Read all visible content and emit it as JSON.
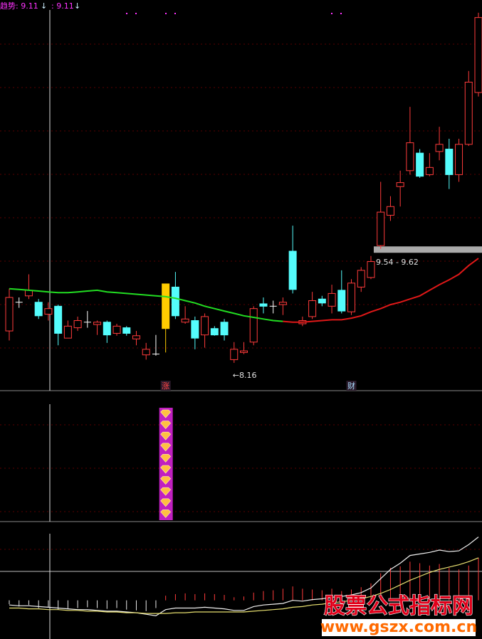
{
  "chart_data": {
    "type": "candlestick",
    "indicator_legend": [
      {
        "text": "趋势: 9.11",
        "color": "#ff33ff"
      },
      {
        "text": ": 9.11",
        "color": "#ff33ff"
      }
    ],
    "ylim": [
      7.82,
      12.71
    ],
    "up_color": "#ff3b3b",
    "down_color": "#54fcfc",
    "flat_color": "#ffffff",
    "open": [
      8.56,
      8.92,
      9.0,
      8.92,
      8.77,
      8.87,
      8.47,
      8.6,
      8.67,
      8.64,
      8.67,
      8.53,
      8.6,
      8.46,
      8.26,
      8.27,
      8.59,
      9.11,
      8.67,
      8.69,
      8.51,
      8.59,
      8.67,
      8.2,
      8.29,
      8.42,
      8.9,
      8.87,
      8.89,
      9.56,
      8.65,
      8.74,
      8.96,
      8.87,
      9.07,
      8.8,
      9.11,
      9.23,
      9.63,
      10.01,
      10.37,
      10.57,
      10.79,
      10.52,
      10.81,
      10.84,
      10.52,
      10.9,
      11.55
    ],
    "close": [
      8.98,
      8.92,
      9.07,
      8.75,
      8.84,
      8.53,
      8.62,
      8.69,
      8.67,
      8.67,
      8.51,
      8.62,
      8.53,
      8.5,
      8.33,
      8.27,
      9.15,
      8.75,
      8.71,
      8.47,
      8.74,
      8.51,
      8.51,
      8.33,
      8.31,
      8.84,
      8.87,
      8.87,
      8.92,
      9.08,
      8.69,
      8.94,
      8.91,
      9.03,
      8.81,
      9.16,
      9.32,
      9.43,
      10.05,
      10.12,
      10.42,
      10.92,
      10.5,
      10.61,
      10.9,
      10.52,
      10.9,
      11.68,
      12.49
    ],
    "high": [
      9.09,
      8.98,
      9.27,
      8.96,
      8.92,
      8.89,
      8.69,
      8.74,
      8.81,
      8.69,
      8.69,
      8.65,
      8.62,
      8.56,
      8.41,
      8.51,
      9.15,
      9.3,
      8.87,
      8.74,
      8.78,
      8.62,
      8.71,
      8.42,
      8.42,
      8.87,
      8.98,
      8.94,
      8.98,
      9.88,
      8.74,
      9.05,
      9.0,
      9.14,
      9.32,
      9.21,
      9.36,
      9.5,
      10.43,
      10.25,
      10.57,
      11.37,
      10.84,
      10.79,
      11.12,
      10.97,
      10.97,
      11.82,
      12.55
    ],
    "low": [
      8.44,
      8.85,
      8.96,
      8.71,
      8.69,
      8.38,
      8.47,
      8.56,
      8.6,
      8.51,
      8.41,
      8.5,
      8.5,
      8.38,
      8.2,
      8.25,
      8.29,
      8.71,
      8.65,
      8.33,
      8.35,
      8.5,
      8.44,
      8.16,
      8.27,
      8.38,
      8.78,
      8.78,
      8.76,
      9.03,
      8.62,
      8.71,
      8.87,
      8.78,
      8.78,
      8.76,
      9.05,
      9.21,
      9.59,
      9.94,
      10.12,
      10.52,
      10.48,
      10.5,
      10.7,
      10.34,
      10.43,
      10.88,
      11.5
    ],
    "series": [
      {
        "color": "#22dd22",
        "values": [
          9.09,
          9.08,
          9.07,
          9.06,
          9.05,
          9.04,
          9.04,
          9.05,
          9.06,
          9.07,
          9.05,
          9.04,
          9.03,
          9.02,
          9.01,
          9.0,
          8.99,
          8.97,
          8.94,
          8.91,
          8.87,
          8.84,
          8.81,
          8.78,
          8.75,
          8.73,
          8.71,
          8.69,
          8.68,
          null,
          null,
          null,
          null,
          null,
          null,
          null,
          null,
          null,
          null,
          null,
          null,
          null,
          null,
          null,
          null,
          null,
          null,
          null,
          null
        ]
      },
      {
        "color": "#e01818",
        "values": [
          null,
          null,
          null,
          null,
          null,
          null,
          null,
          null,
          null,
          null,
          null,
          null,
          null,
          null,
          null,
          null,
          null,
          null,
          null,
          null,
          null,
          null,
          null,
          null,
          null,
          null,
          null,
          null,
          8.68,
          8.67,
          8.67,
          8.68,
          8.69,
          8.7,
          8.7,
          8.72,
          8.75,
          8.8,
          8.84,
          8.89,
          8.92,
          8.96,
          9.0,
          9.07,
          9.14,
          9.2,
          9.27,
          9.38,
          9.47
        ]
      }
    ],
    "zone": {
      "label": "9.54 - 9.62",
      "low": 9.54,
      "high": 9.62,
      "start_index": 37
    },
    "low_label": {
      "text": "←8.16",
      "index": 23
    },
    "signals": [
      {
        "index": 16,
        "label": "涨",
        "color": "#ff4444",
        "candle_color": "#ffcc00"
      },
      {
        "index": 35,
        "label": "财",
        "color": "#aaddff"
      }
    ],
    "macd": {
      "ylim": [
        -0.5,
        1.0
      ],
      "hist": [
        -0.05,
        -0.08,
        -0.06,
        -0.1,
        -0.09,
        -0.12,
        -0.11,
        -0.1,
        -0.09,
        -0.1,
        -0.11,
        -0.1,
        -0.12,
        -0.13,
        -0.14,
        -0.1,
        0.06,
        0.08,
        0.09,
        0.08,
        0.09,
        0.08,
        0.07,
        0.04,
        0.05,
        0.1,
        0.12,
        0.13,
        0.15,
        0.18,
        0.15,
        0.14,
        0.13,
        0.15,
        0.12,
        0.14,
        0.17,
        0.22,
        0.35,
        0.42,
        0.44,
        0.5,
        0.48,
        0.45,
        0.47,
        0.42,
        0.4,
        0.45,
        0.55
      ],
      "series": [
        {
          "color": "#f0f0f0",
          "values": [
            -0.06,
            -0.07,
            -0.07,
            -0.08,
            -0.09,
            -0.1,
            -0.11,
            -0.12,
            -0.12,
            -0.13,
            -0.14,
            -0.14,
            -0.15,
            -0.16,
            -0.18,
            -0.2,
            -0.12,
            -0.1,
            -0.1,
            -0.1,
            -0.09,
            -0.1,
            -0.11,
            -0.13,
            -0.13,
            -0.08,
            -0.06,
            -0.05,
            -0.04,
            0.0,
            -0.01,
            0.01,
            0.02,
            0.04,
            0.05,
            0.07,
            0.1,
            0.16,
            0.28,
            0.4,
            0.48,
            0.58,
            0.6,
            0.62,
            0.65,
            0.63,
            0.64,
            0.72,
            0.82
          ]
        },
        {
          "color": "#e8e070",
          "values": [
            -0.1,
            -0.1,
            -0.11,
            -0.11,
            -0.12,
            -0.12,
            -0.13,
            -0.13,
            -0.14,
            -0.14,
            -0.15,
            -0.15,
            -0.16,
            -0.16,
            -0.17,
            -0.17,
            -0.17,
            -0.16,
            -0.16,
            -0.15,
            -0.15,
            -0.15,
            -0.15,
            -0.15,
            -0.15,
            -0.14,
            -0.13,
            -0.12,
            -0.11,
            -0.09,
            -0.08,
            -0.06,
            -0.05,
            -0.03,
            -0.02,
            0.0,
            0.02,
            0.05,
            0.09,
            0.14,
            0.2,
            0.26,
            0.31,
            0.36,
            0.4,
            0.43,
            0.46,
            0.5,
            0.55
          ]
        }
      ],
      "pos_color": "#ff3b3b",
      "neg_color": "#e8e8e8"
    }
  },
  "watermark": {
    "title": "股票公式指标网",
    "url": "www.gszx.com.cn"
  }
}
